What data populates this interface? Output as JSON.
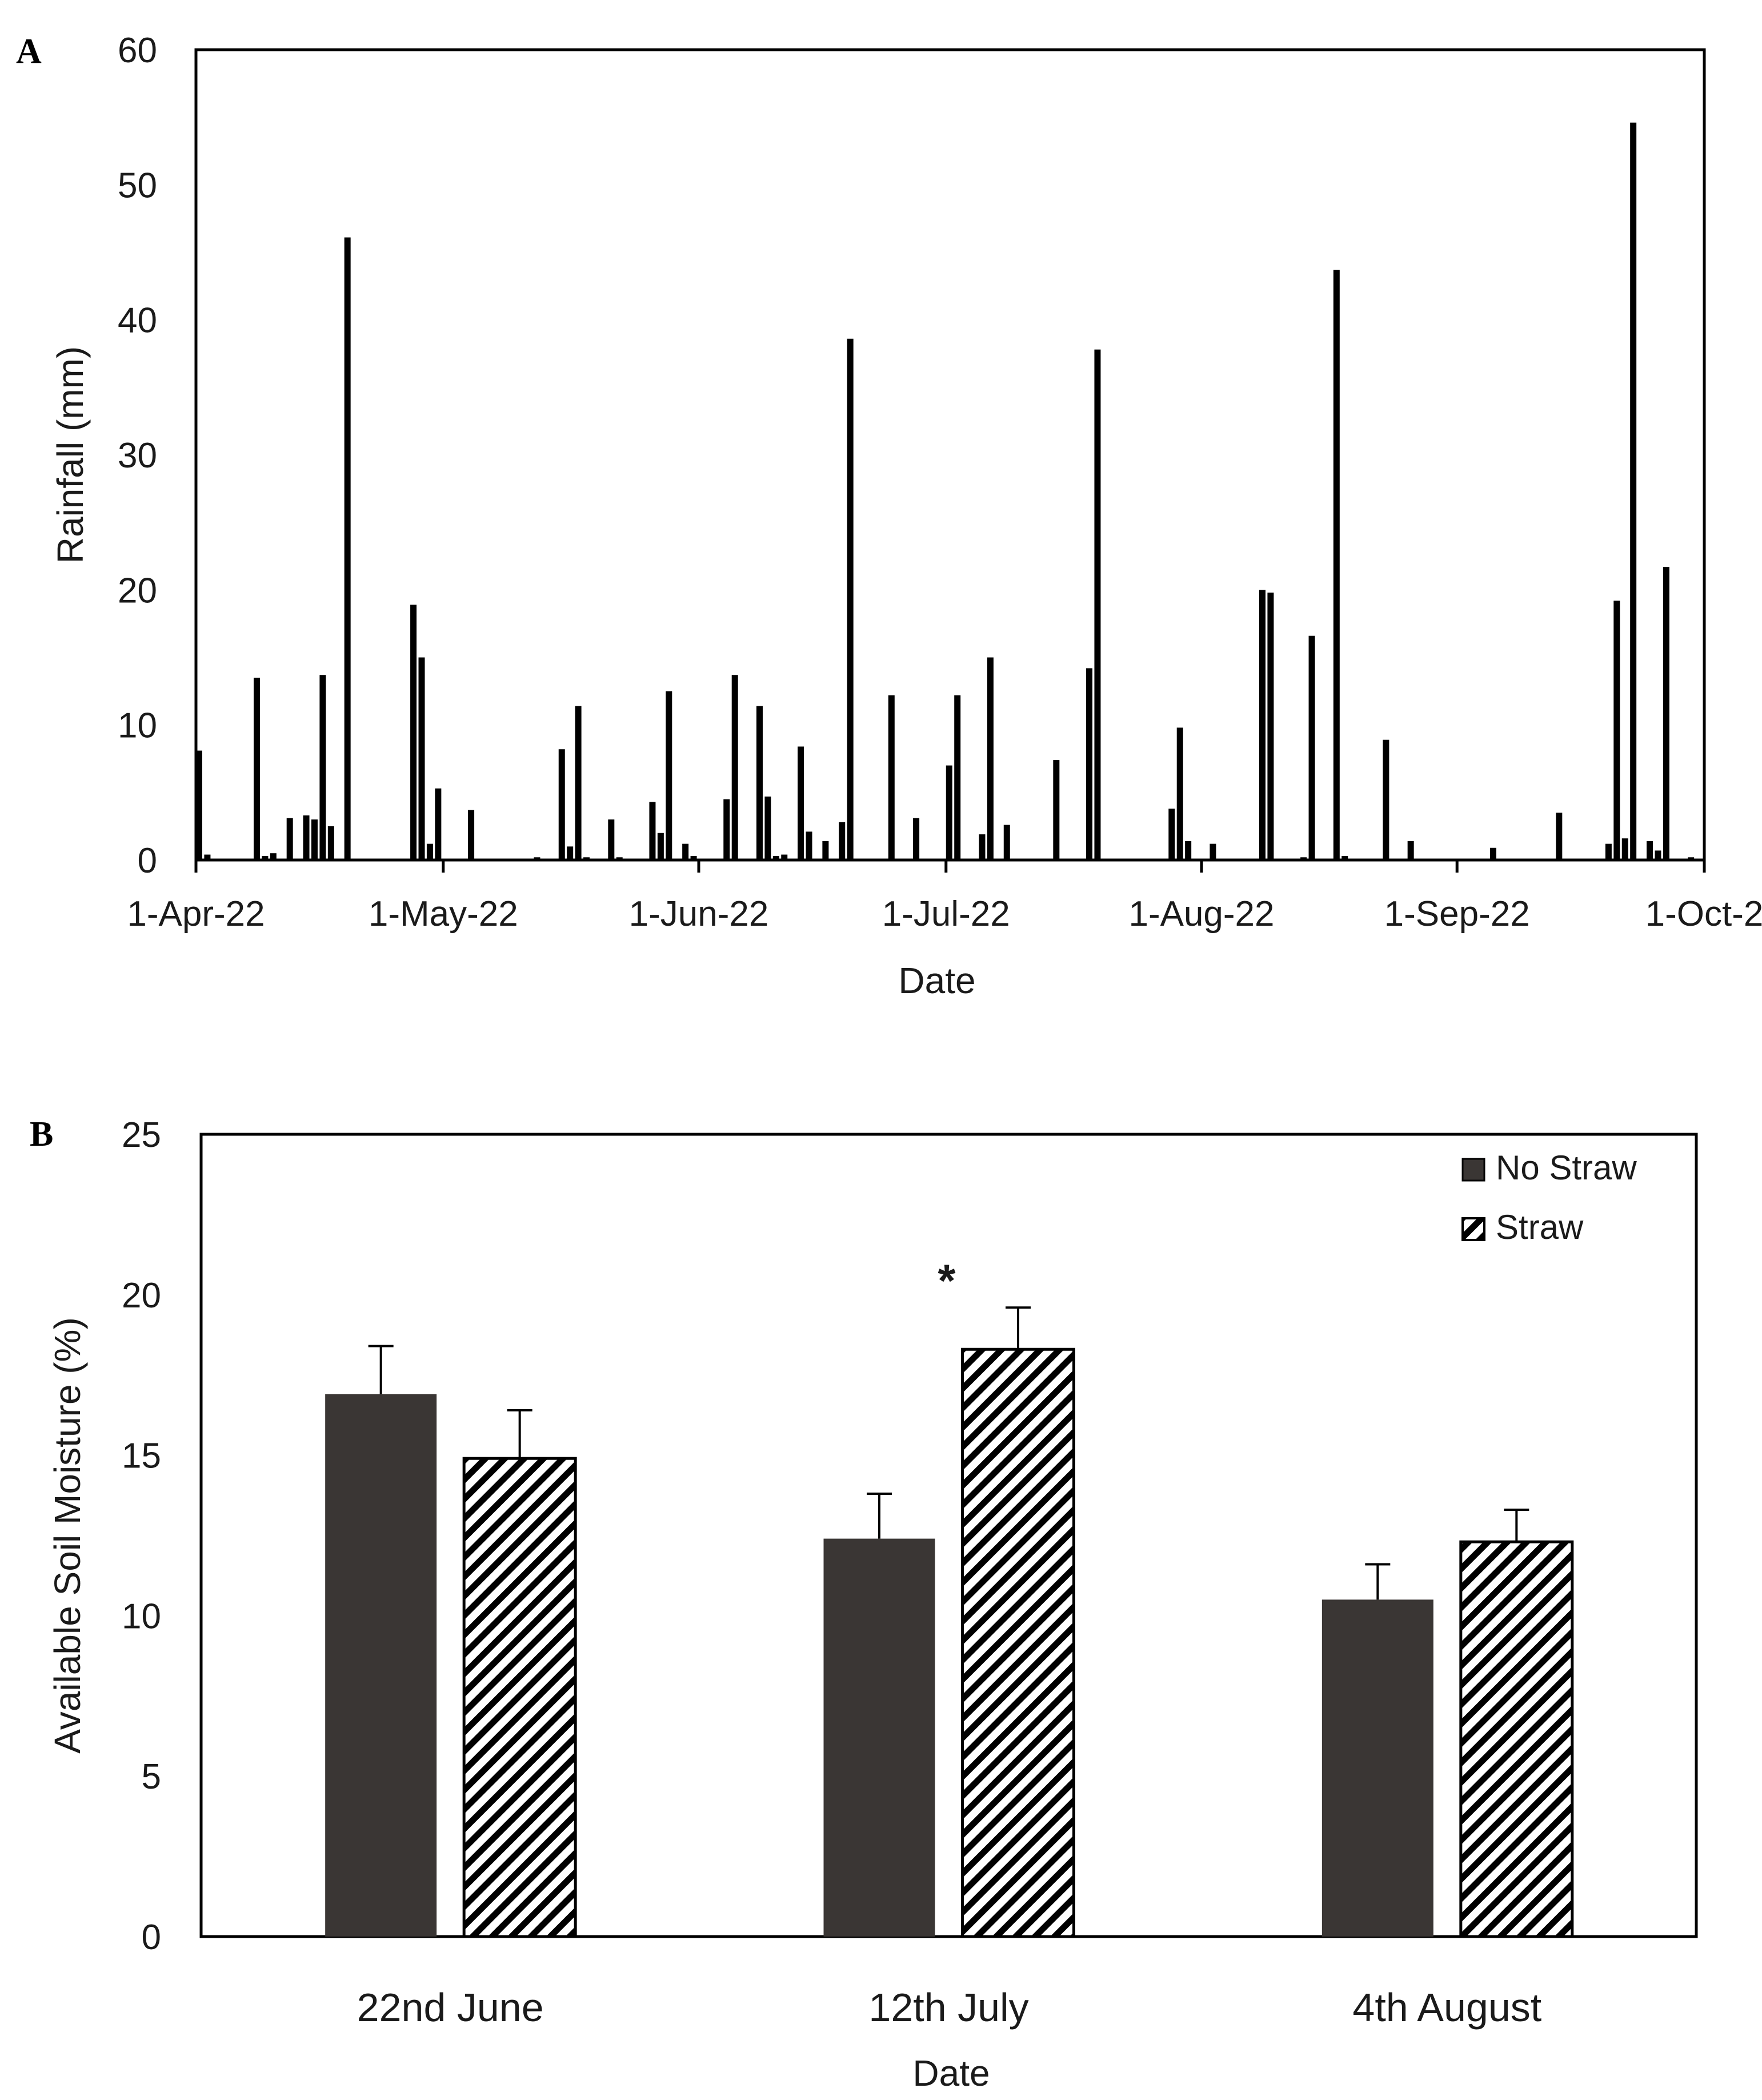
{
  "chart_data": [
    {
      "panel_label": "A",
      "type": "bar",
      "title": "",
      "xlabel": "Date",
      "ylabel": "Rainfall (mm)",
      "ylim": [
        0,
        60
      ],
      "yticks": [
        0,
        10,
        20,
        30,
        40,
        50,
        60
      ],
      "xlim_day": [
        0,
        183
      ],
      "xtick_labels": [
        {
          "day": 0,
          "label": "1-Apr-22"
        },
        {
          "day": 30,
          "label": "1-May-22"
        },
        {
          "day": 61,
          "label": "1-Jun-22"
        },
        {
          "day": 91,
          "label": "1-Jul-22"
        },
        {
          "day": 122,
          "label": "1-Aug-22"
        },
        {
          "day": 153,
          "label": "1-Sep-22"
        },
        {
          "day": 183,
          "label": "1-Oct-2"
        }
      ],
      "bar_color": "#000000",
      "series": [
        {
          "name": "Rainfall",
          "points": [
            {
              "day": 0,
              "value": 8.1
            },
            {
              "day": 1,
              "value": 0.4
            },
            {
              "day": 7,
              "value": 13.5
            },
            {
              "day": 8,
              "value": 0.3
            },
            {
              "day": 9,
              "value": 0.5
            },
            {
              "day": 11,
              "value": 3.1
            },
            {
              "day": 13,
              "value": 3.3
            },
            {
              "day": 14,
              "value": 3.0
            },
            {
              "day": 15,
              "value": 13.7
            },
            {
              "day": 16,
              "value": 2.5
            },
            {
              "day": 18,
              "value": 46.1
            },
            {
              "day": 26,
              "value": 18.9
            },
            {
              "day": 27,
              "value": 15.0
            },
            {
              "day": 28,
              "value": 1.2
            },
            {
              "day": 29,
              "value": 5.3
            },
            {
              "day": 33,
              "value": 3.7
            },
            {
              "day": 41,
              "value": 0.2
            },
            {
              "day": 44,
              "value": 8.2
            },
            {
              "day": 45,
              "value": 1.0
            },
            {
              "day": 46,
              "value": 11.4
            },
            {
              "day": 47,
              "value": 0.2
            },
            {
              "day": 50,
              "value": 3.0
            },
            {
              "day": 51,
              "value": 0.2
            },
            {
              "day": 55,
              "value": 4.3
            },
            {
              "day": 56,
              "value": 2.0
            },
            {
              "day": 57,
              "value": 12.5
            },
            {
              "day": 59,
              "value": 1.2
            },
            {
              "day": 60,
              "value": 0.3
            },
            {
              "day": 64,
              "value": 4.5
            },
            {
              "day": 65,
              "value": 13.7
            },
            {
              "day": 68,
              "value": 11.4
            },
            {
              "day": 69,
              "value": 4.7
            },
            {
              "day": 70,
              "value": 0.3
            },
            {
              "day": 71,
              "value": 0.4
            },
            {
              "day": 73,
              "value": 8.4
            },
            {
              "day": 74,
              "value": 2.1
            },
            {
              "day": 76,
              "value": 1.4
            },
            {
              "day": 78,
              "value": 2.8
            },
            {
              "day": 79,
              "value": 38.6
            },
            {
              "day": 84,
              "value": 12.2
            },
            {
              "day": 87,
              "value": 3.1
            },
            {
              "day": 91,
              "value": 7.0
            },
            {
              "day": 92,
              "value": 12.2
            },
            {
              "day": 95,
              "value": 1.9
            },
            {
              "day": 96,
              "value": 15.0
            },
            {
              "day": 98,
              "value": 2.6
            },
            {
              "day": 104,
              "value": 7.4
            },
            {
              "day": 108,
              "value": 14.2
            },
            {
              "day": 109,
              "value": 37.8
            },
            {
              "day": 118,
              "value": 3.8
            },
            {
              "day": 119,
              "value": 9.8
            },
            {
              "day": 120,
              "value": 1.4
            },
            {
              "day": 123,
              "value": 1.2
            },
            {
              "day": 129,
              "value": 20.0
            },
            {
              "day": 130,
              "value": 19.8
            },
            {
              "day": 134,
              "value": 0.2
            },
            {
              "day": 135,
              "value": 16.6
            },
            {
              "day": 138,
              "value": 43.7
            },
            {
              "day": 139,
              "value": 0.3
            },
            {
              "day": 144,
              "value": 8.9
            },
            {
              "day": 147,
              "value": 1.4
            },
            {
              "day": 157,
              "value": 0.9
            },
            {
              "day": 165,
              "value": 3.5
            },
            {
              "day": 171,
              "value": 1.2
            },
            {
              "day": 172,
              "value": 19.2
            },
            {
              "day": 173,
              "value": 1.6
            },
            {
              "day": 174,
              "value": 54.6
            },
            {
              "day": 176,
              "value": 1.4
            },
            {
              "day": 177,
              "value": 0.7
            },
            {
              "day": 178,
              "value": 21.7
            },
            {
              "day": 181,
              "value": 0.2
            }
          ]
        }
      ]
    },
    {
      "panel_label": "B",
      "type": "bar",
      "title": "",
      "xlabel": "Date",
      "ylabel": "Available Soil Moisture (%)",
      "ylim": [
        0,
        25
      ],
      "yticks": [
        0,
        5,
        10,
        15,
        20,
        25
      ],
      "categories": [
        "22nd June",
        "12th July",
        "4th August"
      ],
      "series": [
        {
          "name": "No Straw",
          "pattern": "solid",
          "color": "#3a3634",
          "values": [
            16.9,
            12.4,
            10.5
          ],
          "errors": [
            1.5,
            1.4,
            1.1
          ]
        },
        {
          "name": "Straw",
          "pattern": "diagonal-hatch",
          "color": "#000000",
          "values": [
            14.9,
            18.3,
            12.3
          ],
          "errors": [
            1.5,
            1.3,
            1.0
          ]
        }
      ],
      "annotations": [
        {
          "category_index": 1,
          "series_index": 1,
          "text": "*"
        }
      ],
      "legend": {
        "position": "top-right",
        "entries": [
          "No Straw",
          "Straw"
        ]
      }
    }
  ]
}
